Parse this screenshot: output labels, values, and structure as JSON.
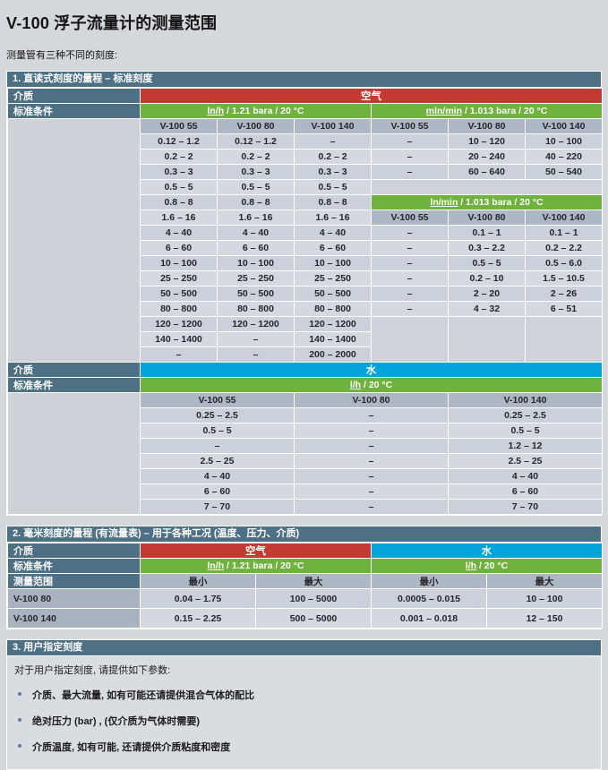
{
  "page": {
    "title": "V-100 浮子流量计的测量范围",
    "subtitle": "测量管有三种不同的刻度:"
  },
  "section1": {
    "title": "1. 直读式刻度的量程 – 标准刻度",
    "rows": [
      [
        {
          "c": "lab",
          "v": "介质"
        },
        {
          "c": "red",
          "v": "空气",
          "cs": 6
        }
      ],
      [
        {
          "c": "lab",
          "v": "标准条件"
        },
        {
          "c": "green",
          "u": "ln/h",
          "v": " / 1.21 bara / 20 °C",
          "cs": 3
        },
        {
          "c": "green",
          "u": "mln/min",
          "v": " / 1.013 bara / 20 °C",
          "cs": 3
        }
      ],
      [
        {
          "c": "sp",
          "rs": 16
        },
        {
          "c": "ch",
          "v": "V-100 55"
        },
        {
          "c": "ch",
          "v": "V-100 80"
        },
        {
          "c": "ch",
          "v": "V-100 140"
        },
        {
          "c": "ch",
          "v": "V-100 55"
        },
        {
          "c": "ch",
          "v": "V-100 80"
        },
        {
          "c": "ch",
          "v": "V-100 140"
        }
      ],
      [
        {
          "c": "d",
          "v": "0.12 – 1.2"
        },
        {
          "c": "d",
          "v": "0.12 – 1.2"
        },
        {
          "c": "d",
          "v": "–"
        },
        {
          "c": "d",
          "v": "–"
        },
        {
          "c": "d",
          "v": "10 – 120"
        },
        {
          "c": "d",
          "v": "10 – 100"
        }
      ],
      [
        {
          "c": "d",
          "v": "0.2 – 2"
        },
        {
          "c": "d",
          "v": "0.2 – 2"
        },
        {
          "c": "d",
          "v": "0.2 – 2"
        },
        {
          "c": "d",
          "v": "–"
        },
        {
          "c": "d",
          "v": "20 – 240"
        },
        {
          "c": "d",
          "v": "40 – 220"
        }
      ],
      [
        {
          "c": "d",
          "v": "0.3 – 3"
        },
        {
          "c": "d",
          "v": "0.3 – 3"
        },
        {
          "c": "d",
          "v": "0.3 – 3"
        },
        {
          "c": "d",
          "v": "–"
        },
        {
          "c": "d",
          "v": "60 – 640"
        },
        {
          "c": "d",
          "v": "50 – 540"
        }
      ],
      [
        {
          "c": "d",
          "v": "0.5 – 5"
        },
        {
          "c": "d",
          "v": "0.5 – 5"
        },
        {
          "c": "d",
          "v": "0.5 – 5"
        },
        {
          "c": "bl",
          "cs": 3
        }
      ],
      [
        {
          "c": "d",
          "v": "0.8 – 8"
        },
        {
          "c": "d",
          "v": "0.8 – 8"
        },
        {
          "c": "d",
          "v": "0.8 – 8"
        },
        {
          "c": "green",
          "u": "ln/min",
          "v": " / 1.013 bara / 20 °C",
          "cs": 3
        }
      ],
      [
        {
          "c": "d",
          "v": "1.6 – 16"
        },
        {
          "c": "d",
          "v": "1.6 – 16"
        },
        {
          "c": "d",
          "v": "1.6 – 16"
        },
        {
          "c": "ch",
          "v": "V-100 55"
        },
        {
          "c": "ch",
          "v": "V-100 80"
        },
        {
          "c": "ch",
          "v": "V-100 140"
        }
      ],
      [
        {
          "c": "d",
          "v": "4 – 40"
        },
        {
          "c": "d",
          "v": "4 – 40"
        },
        {
          "c": "d",
          "v": "4 – 40"
        },
        {
          "c": "d",
          "v": "–"
        },
        {
          "c": "d",
          "v": "0.1 – 1"
        },
        {
          "c": "d",
          "v": "0.1 – 1"
        }
      ],
      [
        {
          "c": "d",
          "v": "6 – 60"
        },
        {
          "c": "d",
          "v": "6 – 60"
        },
        {
          "c": "d",
          "v": "6 – 60"
        },
        {
          "c": "d",
          "v": "–"
        },
        {
          "c": "d",
          "v": "0.3 – 2.2"
        },
        {
          "c": "d",
          "v": "0.2 – 2.2"
        }
      ],
      [
        {
          "c": "d",
          "v": "10 – 100"
        },
        {
          "c": "d",
          "v": "10 – 100"
        },
        {
          "c": "d",
          "v": "10 – 100"
        },
        {
          "c": "d",
          "v": "–"
        },
        {
          "c": "d",
          "v": "0.5 – 5"
        },
        {
          "c": "d",
          "v": "0.5 – 6.0"
        }
      ],
      [
        {
          "c": "d",
          "v": "25 – 250"
        },
        {
          "c": "d",
          "v": "25 – 250"
        },
        {
          "c": "d",
          "v": "25 – 250"
        },
        {
          "c": "d",
          "v": "–"
        },
        {
          "c": "d",
          "v": "0.2 – 10"
        },
        {
          "c": "d",
          "v": "1.5 – 10.5"
        }
      ],
      [
        {
          "c": "d",
          "v": "50 – 500"
        },
        {
          "c": "d",
          "v": "50 – 500"
        },
        {
          "c": "d",
          "v": "50 – 500"
        },
        {
          "c": "d",
          "v": "–"
        },
        {
          "c": "d",
          "v": "2 – 20"
        },
        {
          "c": "d",
          "v": "2 – 26"
        }
      ],
      [
        {
          "c": "d",
          "v": "80 – 800"
        },
        {
          "c": "d",
          "v": "80 – 800"
        },
        {
          "c": "d",
          "v": "80 – 800"
        },
        {
          "c": "d",
          "v": "–"
        },
        {
          "c": "d",
          "v": "4 – 32"
        },
        {
          "c": "d",
          "v": "6 – 51"
        }
      ],
      [
        {
          "c": "d",
          "v": "120 – 1200"
        },
        {
          "c": "d",
          "v": "120 – 1200"
        },
        {
          "c": "d",
          "v": "120 – 1200"
        },
        {
          "c": "bl",
          "rs": 3
        },
        {
          "c": "bl",
          "rs": 3
        },
        {
          "c": "bl",
          "rs": 3
        }
      ],
      [
        {
          "c": "d",
          "v": "140 – 1400"
        },
        {
          "c": "d",
          "v": "–"
        },
        {
          "c": "d",
          "v": "140 – 1400"
        }
      ],
      [
        {
          "c": "d",
          "v": "–"
        },
        {
          "c": "d",
          "v": "–"
        },
        {
          "c": "d",
          "v": "200 – 2000"
        }
      ],
      [
        {
          "c": "lab",
          "v": "介质"
        },
        {
          "c": "cyan",
          "v": "水",
          "cs": 6
        }
      ],
      [
        {
          "c": "lab",
          "v": "标准条件"
        },
        {
          "c": "green",
          "u": "l/h",
          "v": " / 20 °C",
          "cs": 6
        }
      ],
      [
        {
          "c": "sp",
          "rs": 8
        },
        {
          "c": "ch",
          "v": "V-100 55",
          "cs": 2
        },
        {
          "c": "ch",
          "v": "V-100 80",
          "cs": 2
        },
        {
          "c": "ch",
          "v": "V-100 140",
          "cs": 2
        }
      ],
      [
        {
          "c": "d",
          "v": "0.25 – 2.5",
          "cs": 2
        },
        {
          "c": "d",
          "v": "–",
          "cs": 2
        },
        {
          "c": "d",
          "v": "0.25 – 2.5",
          "cs": 2
        }
      ],
      [
        {
          "c": "d",
          "v": "0.5 – 5",
          "cs": 2
        },
        {
          "c": "d",
          "v": "–",
          "cs": 2
        },
        {
          "c": "d",
          "v": "0.5 – 5",
          "cs": 2
        }
      ],
      [
        {
          "c": "d",
          "v": "–",
          "cs": 2
        },
        {
          "c": "d",
          "v": "–",
          "cs": 2
        },
        {
          "c": "d",
          "v": "1.2 – 12",
          "cs": 2
        }
      ],
      [
        {
          "c": "d",
          "v": "2.5 – 25",
          "cs": 2
        },
        {
          "c": "d",
          "v": "–",
          "cs": 2
        },
        {
          "c": "d",
          "v": "2.5 – 25",
          "cs": 2
        }
      ],
      [
        {
          "c": "d",
          "v": "4 – 40",
          "cs": 2
        },
        {
          "c": "d",
          "v": "–",
          "cs": 2
        },
        {
          "c": "d",
          "v": "4 – 40",
          "cs": 2
        }
      ],
      [
        {
          "c": "d",
          "v": "6 – 60",
          "cs": 2
        },
        {
          "c": "d",
          "v": "–",
          "cs": 2
        },
        {
          "c": "d",
          "v": "6 – 60",
          "cs": 2
        }
      ],
      [
        {
          "c": "d",
          "v": "7 – 70",
          "cs": 2
        },
        {
          "c": "d",
          "v": "–",
          "cs": 2
        },
        {
          "c": "d",
          "v": "7 – 70",
          "cs": 2
        }
      ]
    ]
  },
  "section2": {
    "title": "2. 毫米刻度的量程 (有流量表) – 用于各种工况 (温度、压力、介质)",
    "rows": [
      [
        {
          "c": "lab",
          "v": "介质"
        },
        {
          "c": "red",
          "v": "空气",
          "cs": 2
        },
        {
          "c": "cyan",
          "v": "水",
          "cs": 2
        }
      ],
      [
        {
          "c": "lab",
          "v": "标准条件"
        },
        {
          "c": "green",
          "u": "ln/h",
          "v": " / 1.21 bara / 20 °C",
          "cs": 2
        },
        {
          "c": "green",
          "u": "l/h",
          "v": " / 20 °C",
          "cs": 2
        }
      ],
      [
        {
          "c": "lab",
          "v": "测量范围"
        },
        {
          "c": "ch",
          "v": "最小"
        },
        {
          "c": "ch",
          "v": "最大"
        },
        {
          "c": "ch",
          "v": "最小"
        },
        {
          "c": "ch",
          "v": "最大"
        }
      ],
      [
        {
          "c": "chl",
          "v": "V-100 80"
        },
        {
          "c": "d",
          "v": "0.04 – 1.75"
        },
        {
          "c": "d",
          "v": "100 – 5000"
        },
        {
          "c": "d",
          "v": "0.0005 – 0.015"
        },
        {
          "c": "d",
          "v": "10 – 100"
        }
      ],
      [
        {
          "c": "chl",
          "v": "V-100 140"
        },
        {
          "c": "d",
          "v": "0.15 – 2.25"
        },
        {
          "c": "d",
          "v": "500 – 5000"
        },
        {
          "c": "d",
          "v": "0.001 – 0.018"
        },
        {
          "c": "d",
          "v": "12 – 150"
        }
      ]
    ]
  },
  "section3": {
    "title": "3. 用户指定刻度",
    "intro": "对于用户指定刻度, 请提供如下参数:",
    "bullets": [
      "介质、最大流量, 如有可能还请提供混合气体的配比",
      "绝对压力 (bar) , (仅介质为气体时需要)",
      "介质温度, 如有可能, 还请提供介质粘度和密度"
    ]
  },
  "colors": {
    "accent_red": "#c23a31",
    "accent_green": "#6fb23d",
    "accent_cyan": "#00a4da",
    "header_blue": "#4d7084"
  }
}
